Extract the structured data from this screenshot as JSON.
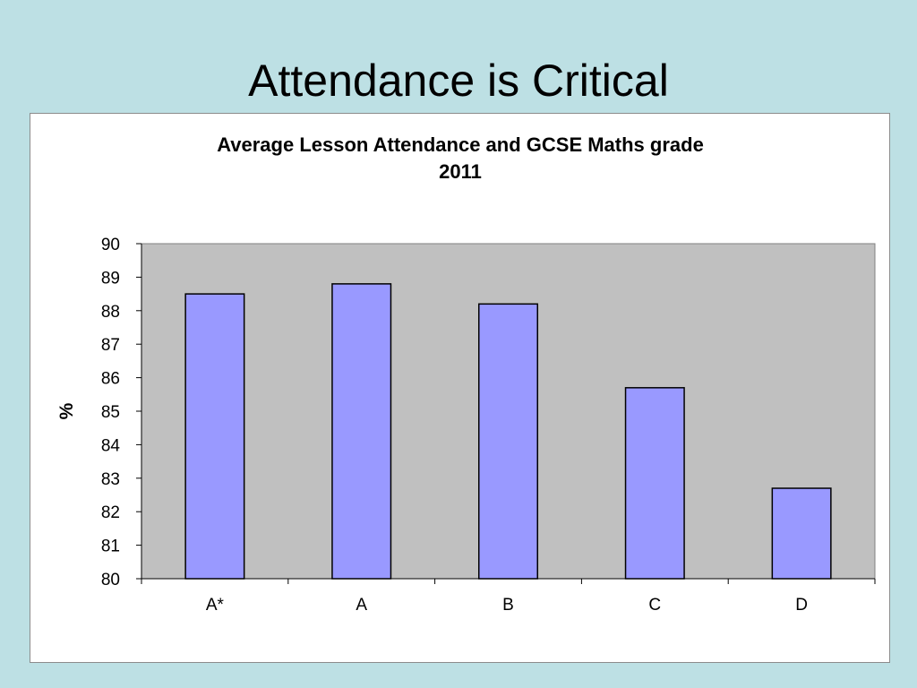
{
  "slide": {
    "title": "Attendance is Critical"
  },
  "colors": {
    "background": "#bde0e4",
    "plot_area": "#c0c0c0",
    "bar_fill": "#9999ff",
    "bar_stroke": "#000000"
  },
  "chart_data": {
    "type": "bar",
    "title_lines": [
      "Average Lesson Attendance and GCSE Maths grade",
      "2011"
    ],
    "xlabel": "",
    "ylabel": "%",
    "categories": [
      "A*",
      "A",
      "B",
      "C",
      "D"
    ],
    "values": [
      88.5,
      88.8,
      88.2,
      85.7,
      82.7
    ],
    "ylim": [
      80,
      90
    ],
    "yticks": [
      "80",
      "81",
      "82",
      "83",
      "84",
      "85",
      "86",
      "87",
      "88",
      "89",
      "90"
    ],
    "grid": false,
    "legend": "none"
  }
}
